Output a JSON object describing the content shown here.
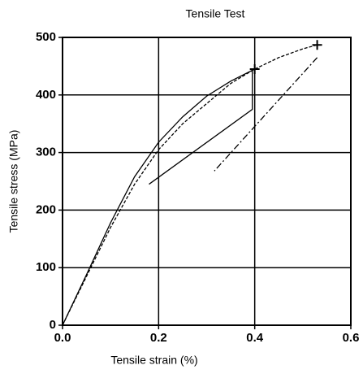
{
  "chart_data": {
    "type": "line",
    "title": "Tensile Test",
    "x_label": "Tensile strain (%)",
    "y_label": "Tensile stress (MPa)",
    "xlim": [
      0.0,
      0.6
    ],
    "xticks": [
      {
        "value": 0,
        "label": "0.0"
      },
      0.2,
      0.4,
      0.6
    ],
    "ylim": [
      0,
      500
    ],
    "yticks": [
      0,
      100,
      200,
      300,
      400,
      500
    ],
    "grid": true,
    "series": [
      {
        "color": "#000000",
        "dash": "none",
        "x": [
          0,
          0.05,
          0.1,
          0.15,
          0.2,
          0.25,
          0.3,
          0.35,
          0.4,
          0.395,
          0.395,
          0.18
        ],
        "values": [
          0,
          88,
          178,
          258,
          318,
          362,
          398,
          424,
          445,
          445,
          375,
          245
        ]
      },
      {
        "color": "#000000",
        "dash": "4 2",
        "x": [
          0,
          0.05,
          0.1,
          0.15,
          0.2,
          0.25,
          0.3,
          0.35,
          0.4,
          0.45,
          0.5,
          0.53
        ],
        "values": [
          0,
          85,
          170,
          245,
          305,
          350,
          385,
          420,
          445,
          465,
          480,
          487
        ]
      },
      {
        "color": "#000000",
        "dash": "8 3 2 3",
        "x": [
          0.53,
          0.316
        ],
        "values": [
          465,
          268
        ]
      },
      {
        "color": "#000000",
        "marker": "+",
        "x": [
          0.4,
          0.53
        ],
        "values": [
          445,
          487
        ]
      }
    ]
  }
}
